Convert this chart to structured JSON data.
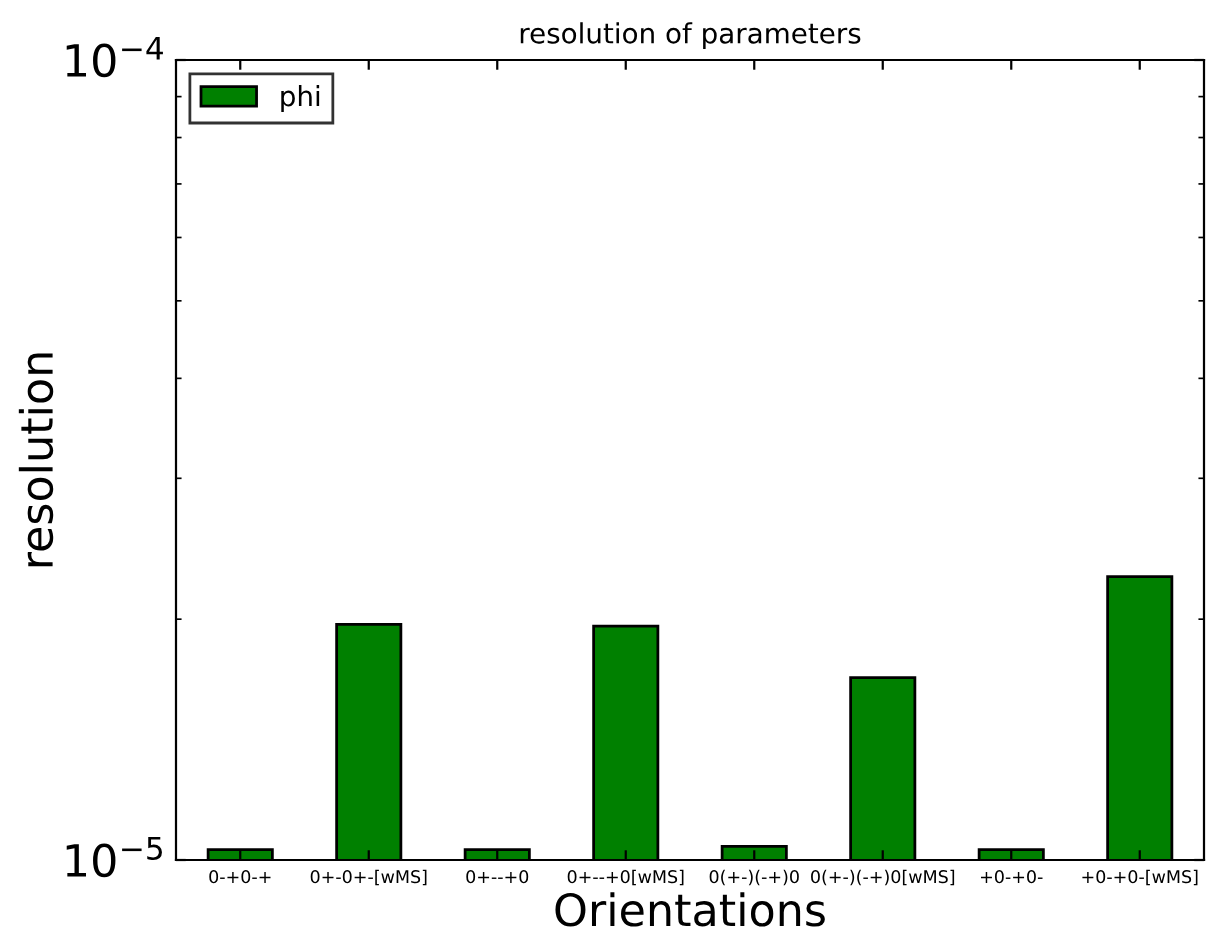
{
  "chart_data": {
    "type": "bar",
    "title": "resolution of parameters",
    "xlabel": "Orientations",
    "ylabel": "resolution",
    "categories": [
      "0-+0-+",
      "0+-0+-[wMS]",
      "0+--+0",
      "0+--+0[wMS]",
      "0(+-)(-+)0",
      "0(+-)(-+)0[wMS]",
      "+0-+0-",
      "+0-+0-[wMS]"
    ],
    "series": [
      {
        "name": "phi",
        "color": "#008000",
        "values": [
          1.03e-05,
          1.97e-05,
          1.03e-05,
          1.96e-05,
          1.04e-05,
          1.69e-05,
          1.03e-05,
          2.26e-05
        ]
      }
    ],
    "log": "y",
    "ylim": [
      1e-05,
      0.0001
    ],
    "yticks": [
      {
        "value": 1e-05,
        "label": "10$^{−5}$"
      },
      {
        "value": 0.0001,
        "label": "10$^{−4}$"
      }
    ],
    "legend": "top left",
    "grid": false
  }
}
